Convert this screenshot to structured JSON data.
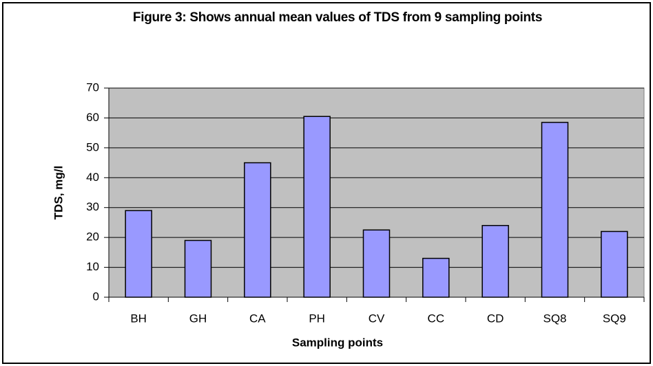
{
  "chart_data": {
    "type": "bar",
    "title": "Figure 3: Shows annual mean values of TDS from 9 sampling points",
    "x_label": "Sampling points",
    "y_label": "TDS, mg/l",
    "categories": [
      "BH",
      "GH",
      "CA",
      "PH",
      "CV",
      "CC",
      "CD",
      "SQ8",
      "SQ9"
    ],
    "values": [
      29,
      19,
      45,
      60.5,
      22.5,
      13,
      24,
      58.5,
      22
    ],
    "color": "#9999ff",
    "ylim": [
      0,
      70
    ],
    "yticks": [
      0,
      10,
      20,
      30,
      40,
      50,
      60,
      70
    ],
    "grid": true
  }
}
